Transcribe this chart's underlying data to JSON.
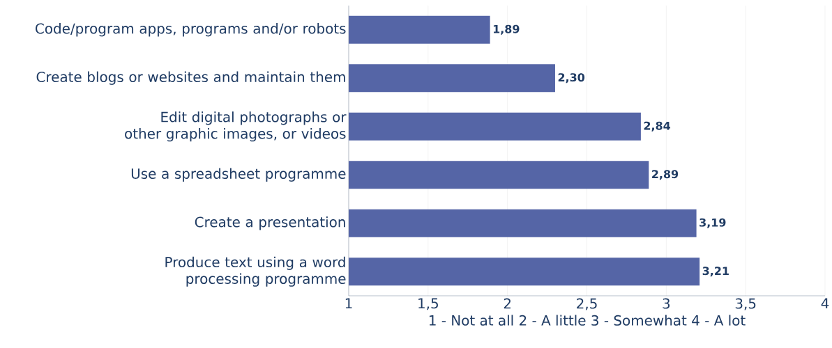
{
  "chart_data": {
    "type": "bar",
    "orientation": "horizontal",
    "categories": [
      "Code/program apps, programs and/or robots",
      "Create blogs or websites and maintain them",
      "Edit digital photographs or other graphic images, or videos",
      "Use a spreadsheet programme",
      "Create a presentation",
      "Produce text using a word processing programme"
    ],
    "values": [
      1.89,
      2.3,
      2.84,
      2.89,
      3.19,
      3.21
    ],
    "value_labels": [
      "1,89",
      "2,30",
      "2,84",
      "2,89",
      "3,19",
      "3,21"
    ],
    "color": "#5565a6",
    "xlabel": "1 - Not at all   2 - A little   3 - Somewhat   4 - A lot",
    "xlim": [
      1,
      4
    ],
    "xticks": [
      1,
      {
        "value": 1.5,
        "label": "1,5"
      },
      2,
      {
        "value": 2.5,
        "label": "2,5"
      },
      3,
      {
        "value": 3.5,
        "label": "3,5"
      },
      4
    ],
    "grid": "x"
  }
}
